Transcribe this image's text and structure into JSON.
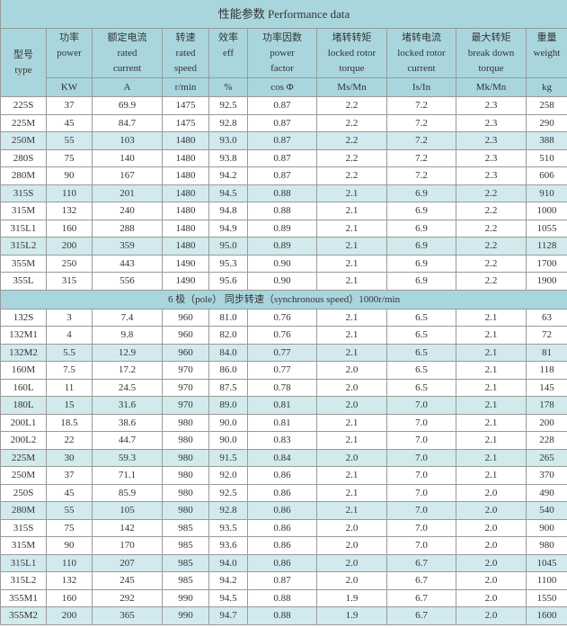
{
  "title": "性能参数  Performance data",
  "headers": [
    {
      "cn": "型号",
      "en": "type",
      "unit": ""
    },
    {
      "cn": "功率",
      "en": "power",
      "unit": "KW"
    },
    {
      "cn": "额定电流",
      "en": "rated current",
      "unit": "A"
    },
    {
      "cn": "转速",
      "en": "rated speed",
      "unit": "r/min"
    },
    {
      "cn": "效率",
      "en": "eff",
      "unit": "%"
    },
    {
      "cn": "功率因数",
      "en": "power factor",
      "unit": "cos Φ"
    },
    {
      "cn": "堵转转矩",
      "en": "locked rotor torque",
      "unit": "Ms/Mn"
    },
    {
      "cn": "堵转电流",
      "en": "locked rotor current",
      "unit": "Is/In"
    },
    {
      "cn": "最大转矩",
      "en": "break down torque",
      "unit": "Mk/Mn"
    },
    {
      "cn": "重量",
      "en": "weight",
      "unit": "kg"
    }
  ],
  "header_lines": [
    [
      "型号",
      "type"
    ],
    [
      "功率",
      "power"
    ],
    [
      "额定电流",
      "rated",
      "current"
    ],
    [
      "转速",
      "rated",
      "speed"
    ],
    [
      "效率",
      "eff"
    ],
    [
      "功率因数",
      "power",
      "factor"
    ],
    [
      "堵转转矩",
      "locked rotor",
      "torque"
    ],
    [
      "堵转电流",
      "locked rotor",
      "current"
    ],
    [
      "最大转矩",
      "break down",
      "torque"
    ],
    [
      "重量",
      "weight"
    ]
  ],
  "section1": [
    [
      "225S",
      "37",
      "69.9",
      "1475",
      "92.5",
      "0.87",
      "2.2",
      "7.2",
      "2.3",
      "258"
    ],
    [
      "225M",
      "45",
      "84.7",
      "1475",
      "92.8",
      "0.87",
      "2.2",
      "7.2",
      "2.3",
      "290"
    ],
    [
      "250M",
      "55",
      "103",
      "1480",
      "93.0",
      "0.87",
      "2.2",
      "7.2",
      "2.3",
      "388"
    ],
    [
      "280S",
      "75",
      "140",
      "1480",
      "93.8",
      "0.87",
      "2.2",
      "7.2",
      "2.3",
      "510"
    ],
    [
      "280M",
      "90",
      "167",
      "1480",
      "94.2",
      "0.87",
      "2.2",
      "7.2",
      "2.3",
      "606"
    ],
    [
      "315S",
      "110",
      "201",
      "1480",
      "94.5",
      "0.88",
      "2.1",
      "6.9",
      "2.2",
      "910"
    ],
    [
      "315M",
      "132",
      "240",
      "1480",
      "94.8",
      "0.88",
      "2.1",
      "6.9",
      "2.2",
      "1000"
    ],
    [
      "315L1",
      "160",
      "288",
      "1480",
      "94.9",
      "0.89",
      "2.1",
      "6.9",
      "2.2",
      "1055"
    ],
    [
      "315L2",
      "200",
      "359",
      "1480",
      "95.0",
      "0.89",
      "2.1",
      "6.9",
      "2.2",
      "1128"
    ],
    [
      "355M",
      "250",
      "443",
      "1490",
      "95.3",
      "0.90",
      "2.1",
      "6.9",
      "2.2",
      "1700"
    ],
    [
      "355L",
      "315",
      "556",
      "1490",
      "95.6",
      "0.90",
      "2.1",
      "6.9",
      "2.2",
      "1900"
    ]
  ],
  "section2_title": "6 极（pole） 同步转速（synchronous speed）1000r/min",
  "section2": [
    [
      "132S",
      "3",
      "7.4",
      "960",
      "81.0",
      "0.76",
      "2.1",
      "6.5",
      "2.1",
      "63"
    ],
    [
      "132M1",
      "4",
      "9.8",
      "960",
      "82.0",
      "0.76",
      "2.1",
      "6.5",
      "2.1",
      "72"
    ],
    [
      "132M2",
      "5.5",
      "12.9",
      "960",
      "84.0",
      "0.77",
      "2.1",
      "6.5",
      "2.1",
      "81"
    ],
    [
      "160M",
      "7.5",
      "17.2",
      "970",
      "86.0",
      "0.77",
      "2.0",
      "6.5",
      "2.1",
      "118"
    ],
    [
      "160L",
      "11",
      "24.5",
      "970",
      "87.5",
      "0.78",
      "2.0",
      "6.5",
      "2.1",
      "145"
    ],
    [
      "180L",
      "15",
      "31.6",
      "970",
      "89.0",
      "0.81",
      "2.0",
      "7.0",
      "2.1",
      "178"
    ],
    [
      "200L1",
      "18.5",
      "38.6",
      "980",
      "90.0",
      "0.81",
      "2.1",
      "7.0",
      "2.1",
      "200"
    ],
    [
      "200L2",
      "22",
      "44.7",
      "980",
      "90.0",
      "0.83",
      "2.1",
      "7.0",
      "2.1",
      "228"
    ],
    [
      "225M",
      "30",
      "59.3",
      "980",
      "91.5",
      "0.84",
      "2.0",
      "7.0",
      "2.1",
      "265"
    ],
    [
      "250M",
      "37",
      "71.1",
      "980",
      "92.0",
      "0.86",
      "2.1",
      "7.0",
      "2.1",
      "370"
    ],
    [
      "250S",
      "45",
      "85.9",
      "980",
      "92.5",
      "0.86",
      "2.1",
      "7.0",
      "2.0",
      "490"
    ],
    [
      "280M",
      "55",
      "105",
      "980",
      "92.8",
      "0.86",
      "2.1",
      "7.0",
      "2.0",
      "540"
    ],
    [
      "315S",
      "75",
      "142",
      "985",
      "93.5",
      "0.86",
      "2.0",
      "7.0",
      "2.0",
      "900"
    ],
    [
      "315M",
      "90",
      "170",
      "985",
      "93.6",
      "0.86",
      "2.0",
      "7.0",
      "2.0",
      "980"
    ],
    [
      "315L1",
      "110",
      "207",
      "985",
      "94.0",
      "0.86",
      "2.0",
      "6.7",
      "2.0",
      "1045"
    ],
    [
      "315L2",
      "132",
      "245",
      "985",
      "94.2",
      "0.87",
      "2.0",
      "6.7",
      "2.0",
      "1100"
    ],
    [
      "355M1",
      "160",
      "292",
      "990",
      "94.5",
      "0.88",
      "1.9",
      "6.7",
      "2.0",
      "1550"
    ],
    [
      "355M2",
      "200",
      "365",
      "990",
      "94.7",
      "0.88",
      "1.9",
      "6.7",
      "2.0",
      "1600"
    ]
  ],
  "colors": {
    "header_bg": "#a9d6dd",
    "highlight_row": "#d2eaee",
    "border": "#9a9a9a"
  }
}
